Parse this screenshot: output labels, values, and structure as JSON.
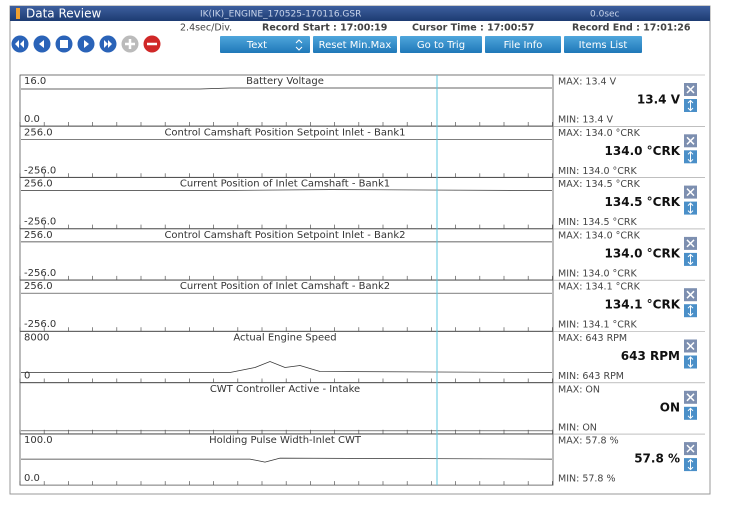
{
  "header": {
    "title": "Data Review",
    "file": "IK(IK)_ENGINE_170525-170116.GSR",
    "time": "0.0sec"
  },
  "info": {
    "division": "2.4sec/Div.",
    "record_start": "Record Start : 17:00:19",
    "cursor_time": "Cursor Time : 17:00:57",
    "record_end": "Record End : 17:01:26"
  },
  "toolbar": {
    "buttons": [
      "Text",
      "Reset Min.Max",
      "Go to Trig",
      "File Info",
      "Items List"
    ]
  },
  "panels": [
    {
      "top": "16.0",
      "bottom": "0.0",
      "title": "Battery Voltage",
      "max": "MAX:  13.4 V",
      "value": "13.4 V",
      "min": "MIN:  13.4 V"
    },
    {
      "top": "256.0",
      "bottom": "-256.0",
      "title": "Control Camshaft Position Setpoint Inlet - Bank1",
      "max": "MAX:  134.0 °CRK",
      "value": "134.0 °CRK",
      "min": "MIN: 134.0 °CRK"
    },
    {
      "top": "256.0",
      "bottom": "-256.0",
      "title": "Current Position of Inlet Camshaft - Bank1",
      "max": "MAX:  134.5 °CRK",
      "value": "134.5 °CRK",
      "min": "MIN: 134.5 °CRK"
    },
    {
      "top": "256.0",
      "bottom": "-256.0",
      "title": "Control Camshaft Position Setpoint Inlet - Bank2",
      "max": "MAX:  134.0 °CRK",
      "value": "134.0 °CRK",
      "min": "MIN: 134.0 °CRK"
    },
    {
      "top": "256.0",
      "bottom": "-256.0",
      "title": "Current Position of Inlet Camshaft - Bank2",
      "max": "MAX:  134.1 °CRK",
      "value": "134.1 °CRK",
      "min": "MIN: 134.1 °CRK"
    },
    {
      "top": "8000",
      "bottom": "0",
      "title": "Actual Engine Speed",
      "max": "MAX:    643 RPM",
      "value": "643 RPM",
      "min": "MIN:    643 RPM"
    },
    {
      "title": "CWT Controller Active - Intake",
      "max": "MAX: ON",
      "value": "ON",
      "min": "MIN: ON"
    },
    {
      "top": "100.0",
      "bottom": "0.0",
      "title": "Holding Pulse Width-Inlet CWT",
      "max": "MAX:  57.8 %",
      "value": "57.8 %",
      "min": "MIN:  57.8 %"
    }
  ]
}
